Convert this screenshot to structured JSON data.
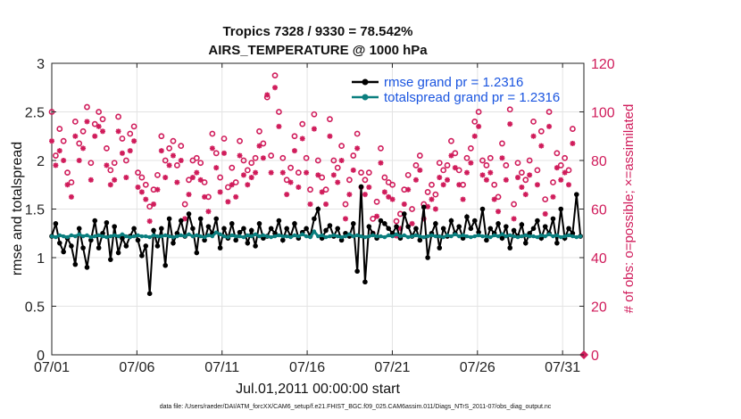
{
  "chart_data": {
    "type": "line",
    "title": "Tropics 7328 / 9330 = 78.542%",
    "subtitle": "AIRS_TEMPERATURE @ 1000 hPa",
    "xlabel": "Jul.01,2011 00:00:00 start",
    "ylabel": "rmse and totalspread",
    "ylabel_right": "# of obs: o=possible; ×=assimilated",
    "footnote": "data file: /Users/raeder/DAI/ATM_forcXX/CAM6_setup/f.e21.FHIST_BGC.f09_025.CAM6assim.011/Diags_NTrS_2011-07/obs_diag_output.nc",
    "x_ticks": [
      "07/01",
      "07/06",
      "07/11",
      "07/16",
      "07/21",
      "07/26",
      "07/31"
    ],
    "x_tick_days": [
      0,
      5,
      10,
      15,
      20,
      25,
      30
    ],
    "xlim": [
      0,
      31.25
    ],
    "ylim": [
      0,
      3
    ],
    "y_ticks": [
      "0",
      "0.5",
      "1",
      "1.5",
      "2",
      "2.5",
      "3"
    ],
    "y2lim": [
      0,
      120
    ],
    "y2_ticks": [
      "0",
      "20",
      "40",
      "60",
      "80",
      "100",
      "120"
    ],
    "grid": true,
    "legend_position": "top-right",
    "colors": {
      "rmse": "#000000",
      "totalspread": "#0b7f7f",
      "obs": "#d01c5b",
      "legend_text": "#1a55e0"
    },
    "series": [
      {
        "name": "rmse grand pr = 1.2316",
        "values": [
          1.22,
          1.35,
          1.15,
          1.06,
          1.2,
          1.12,
          0.93,
          1.3,
          1.1,
          0.9,
          1.18,
          1.38,
          1.1,
          1.25,
          1.36,
          0.98,
          1.32,
          1.05,
          1.2,
          1.12,
          1.22,
          1.3,
          1.18,
          1.02,
          1.12,
          0.63,
          1.28,
          1.12,
          1.3,
          0.92,
          1.4,
          1.15,
          1.25,
          1.38,
          1.22,
          1.45,
          1.3,
          1.05,
          1.4,
          1.18,
          1.32,
          1.25,
          1.4,
          1.1,
          1.3,
          1.2,
          1.35,
          1.18,
          1.26,
          1.3,
          1.15,
          1.28,
          1.12,
          1.35,
          1.2,
          1.22,
          1.3,
          1.25,
          1.38,
          1.18,
          1.3,
          1.22,
          1.35,
          1.2,
          1.26,
          1.3,
          1.22,
          1.4,
          1.5,
          1.2,
          1.28,
          1.33,
          1.22,
          1.3,
          1.18,
          1.25,
          1.22,
          1.35,
          0.86,
          1.73,
          0.75,
          1.32,
          1.25,
          1.2,
          1.38,
          1.35,
          1.3,
          1.25,
          1.32,
          1.2,
          1.45,
          1.32,
          1.22,
          1.3,
          1.18,
          1.52,
          1.0,
          1.25,
          1.35,
          1.1,
          1.3,
          1.22,
          1.38,
          1.25,
          1.32,
          1.2,
          1.42,
          1.3,
          1.38,
          1.26,
          1.5,
          1.18,
          1.3,
          1.25,
          1.35,
          1.2,
          1.32,
          1.1,
          1.28,
          1.22,
          1.34,
          1.15,
          1.25,
          1.3,
          1.38,
          1.2,
          1.32,
          1.25,
          1.4,
          1.15,
          1.5,
          1.2,
          1.3,
          1.25,
          1.65,
          1.22
        ]
      },
      {
        "name": "totalspread grand pr = 1.2316",
        "values": [
          1.22,
          1.21,
          1.23,
          1.22,
          1.21,
          1.23,
          1.22,
          1.24,
          1.22,
          1.23,
          1.21,
          1.22,
          1.23,
          1.22,
          1.21,
          1.22,
          1.23,
          1.22,
          1.24,
          1.22,
          1.21,
          1.22,
          1.23,
          1.22,
          1.22,
          1.21,
          1.23,
          1.22,
          1.22,
          1.23,
          1.22,
          1.21,
          1.22,
          1.23,
          1.22,
          1.24,
          1.22,
          1.23,
          1.22,
          1.21,
          1.23,
          1.22,
          1.26,
          1.24,
          1.22,
          1.21,
          1.23,
          1.22,
          1.22,
          1.21,
          1.23,
          1.22,
          1.24,
          1.22,
          1.23,
          1.22,
          1.21,
          1.22,
          1.23,
          1.22,
          1.22,
          1.21,
          1.23,
          1.22,
          1.24,
          1.22,
          1.21,
          1.27,
          1.22,
          1.23,
          1.21,
          1.22,
          1.23,
          1.22,
          1.21,
          1.22,
          1.24,
          1.22,
          1.23,
          1.22,
          1.21,
          1.22,
          1.23,
          1.22,
          1.22,
          1.21,
          1.23,
          1.22,
          1.24,
          1.22,
          1.23,
          1.21,
          1.22,
          1.23,
          1.22,
          1.21,
          1.22,
          1.23,
          1.22,
          1.22,
          1.21,
          1.23,
          1.22,
          1.24,
          1.22,
          1.23,
          1.22,
          1.21,
          1.22,
          1.23,
          1.22,
          1.22,
          1.21,
          1.23,
          1.22,
          1.24,
          1.22,
          1.23,
          1.22,
          1.21,
          1.22,
          1.23,
          1.22,
          1.22,
          1.21,
          1.23,
          1.22,
          1.24,
          1.22,
          1.23,
          1.21,
          1.22,
          1.23,
          1.22,
          1.21,
          1.22
        ]
      }
    ],
    "obs_possible": [
      100,
      82,
      93,
      88,
      75,
      71,
      96,
      87,
      92,
      102,
      79,
      95,
      100,
      97,
      85,
      76,
      79,
      98,
      89,
      80,
      91,
      94,
      75,
      73,
      70,
      61,
      68,
      74,
      90,
      80,
      85,
      88,
      78,
      86,
      62,
      72,
      80,
      81,
      79,
      71,
      65,
      91,
      83,
      73,
      89,
      69,
      77,
      71,
      88,
      80,
      76,
      79,
      81,
      92,
      87,
      106,
      82,
      115,
      100,
      81,
      72,
      77,
      90,
      75,
      95,
      81,
      68,
      99,
      80,
      73,
      68,
      97,
      80,
      77,
      86,
      62,
      72,
      82,
      91,
      75,
      72,
      75,
      56,
      63,
      85,
      73,
      71,
      70,
      55,
      58,
      68,
      74,
      60,
      78,
      82,
      62,
      67,
      70,
      66,
      79,
      76,
      78,
      88,
      83,
      76,
      70,
      81,
      85,
      96,
      100,
      80,
      78,
      81,
      70,
      65,
      87,
      78,
      101,
      62,
      79,
      75,
      72,
      80,
      96,
      76,
      92,
      64,
      100,
      71,
      83,
      78,
      81,
      76,
      93
    ],
    "obs_assimilated": [
      88,
      78,
      84,
      80,
      70,
      65,
      90,
      80,
      85,
      96,
      72,
      90,
      94,
      92,
      78,
      70,
      72,
      92,
      83,
      73,
      84,
      88,
      69,
      67,
      64,
      55,
      62,
      68,
      84,
      73,
      78,
      82,
      71,
      80,
      56,
      66,
      73,
      75,
      72,
      65,
      59,
      85,
      77,
      67,
      83,
      63,
      70,
      65,
      82,
      74,
      70,
      73,
      75,
      86,
      81,
      107,
      75,
      110,
      94,
      75,
      66,
      71,
      84,
      69,
      89,
      75,
      62,
      93,
      74,
      67,
      62,
      90,
      74,
      71,
      80,
      56,
      66,
      76,
      85,
      69,
      66,
      69,
      50,
      57,
      79,
      67,
      65,
      64,
      49,
      52,
      62,
      68,
      54,
      72,
      76,
      56,
      61,
      64,
      60,
      73,
      70,
      72,
      82,
      77,
      70,
      64,
      75,
      79,
      90,
      94,
      74,
      72,
      75,
      64,
      59,
      81,
      72,
      95,
      56,
      73,
      69,
      66,
      74,
      90,
      70,
      86,
      58,
      94,
      65,
      77,
      72,
      75,
      70,
      87
    ]
  }
}
